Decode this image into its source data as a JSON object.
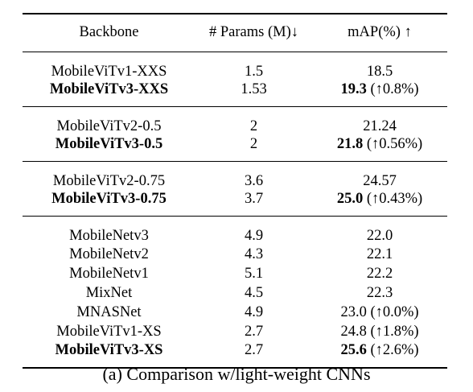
{
  "table": {
    "headers": [
      "Backbone",
      "# Params (M)↓",
      "mAP(%) ↑"
    ],
    "groups": [
      {
        "rows": [
          {
            "backbone": "MobileViTv1-XXS",
            "params": "1.5",
            "map": "18.5",
            "gain": "",
            "bold": false
          },
          {
            "backbone": "MobileViTv3-XXS",
            "params": "1.53",
            "map": "19.3",
            "gain": " (↑0.8%)",
            "bold": true
          }
        ]
      },
      {
        "rows": [
          {
            "backbone": "MobileViTv2-0.5",
            "params": "2",
            "map": "21.24",
            "gain": "",
            "bold": false
          },
          {
            "backbone": "MobileViTv3-0.5",
            "params": "2",
            "map": "21.8",
            "gain": " (↑0.56%)",
            "bold": true
          }
        ]
      },
      {
        "rows": [
          {
            "backbone": "MobileViTv2-0.75",
            "params": "3.6",
            "map": "24.57",
            "gain": "",
            "bold": false
          },
          {
            "backbone": "MobileViTv3-0.75",
            "params": "3.7",
            "map": "25.0",
            "gain": " (↑0.43%)",
            "bold": true
          }
        ]
      },
      {
        "rows": [
          {
            "backbone": "MobileNetv3",
            "params": "4.9",
            "map": "22.0",
            "gain": "",
            "bold": false
          },
          {
            "backbone": "MobileNetv2",
            "params": "4.3",
            "map": "22.1",
            "gain": "",
            "bold": false
          },
          {
            "backbone": "MobileNetv1",
            "params": "5.1",
            "map": "22.2",
            "gain": "",
            "bold": false
          },
          {
            "backbone": "MixNet",
            "params": "4.5",
            "map": "22.3",
            "gain": "",
            "bold": false
          },
          {
            "backbone": "MNASNet",
            "params": "4.9",
            "map": "23.0 (↑0.0%)",
            "gain": "",
            "bold": false
          },
          {
            "backbone": "MobileViTv1-XS",
            "params": "2.7",
            "map": "24.8 (↑1.8%)",
            "gain": "",
            "bold": false
          },
          {
            "backbone": "MobileViTv3-XS",
            "params": "2.7",
            "map": "25.6",
            "gain": " (↑2.6%)",
            "bold": true
          }
        ]
      }
    ]
  },
  "caption": "(a) Comparison w/light-weight CNNs"
}
